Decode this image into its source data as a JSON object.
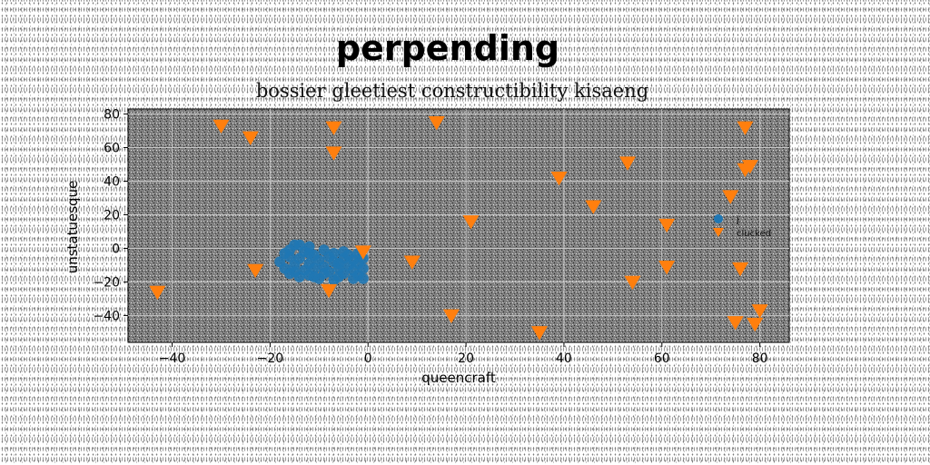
{
  "chart_data": {
    "type": "scatter",
    "title": "perpending",
    "subtitle": "bossier gleetiest constructibility kisaeng",
    "xlabel": "queencraft",
    "ylabel": "unstatuesque",
    "xlim": [
      -49,
      86
    ],
    "ylim": [
      -56,
      83
    ],
    "xticks": [
      -40,
      -20,
      0,
      20,
      40,
      60,
      80
    ],
    "yticks": [
      -40,
      -20,
      0,
      20,
      40,
      60,
      80
    ],
    "grid": true,
    "legend_position": "right",
    "series": [
      {
        "name": "j",
        "marker": "circle",
        "color": "#1f77b4",
        "points": [
          [
            -18,
            -8
          ],
          [
            -17,
            -12
          ],
          [
            -16,
            -5
          ],
          [
            -16,
            -15
          ],
          [
            -15,
            2
          ],
          [
            -15,
            -10
          ],
          [
            -14,
            -6
          ],
          [
            -14,
            -17
          ],
          [
            -13,
            -2
          ],
          [
            -13,
            -13
          ],
          [
            -12,
            1
          ],
          [
            -12,
            -9
          ],
          [
            -12,
            -16
          ],
          [
            -11,
            -4
          ],
          [
            -11,
            -12
          ],
          [
            -10,
            -7
          ],
          [
            -10,
            -18
          ],
          [
            -9,
            -1
          ],
          [
            -9,
            -11
          ],
          [
            -9,
            -15
          ],
          [
            -8,
            -5
          ],
          [
            -8,
            -14
          ],
          [
            -7,
            -8
          ],
          [
            -7,
            -3
          ],
          [
            -6,
            -12
          ],
          [
            -6,
            -17
          ],
          [
            -5,
            -6
          ],
          [
            -5,
            -2
          ],
          [
            -5,
            -15
          ],
          [
            -4,
            -10
          ],
          [
            -4,
            -4
          ],
          [
            -3,
            -13
          ],
          [
            -3,
            -7
          ],
          [
            -2,
            -16
          ],
          [
            -2,
            -9
          ],
          [
            -2,
            -3
          ],
          [
            -1,
            -12
          ],
          [
            -1,
            -18
          ],
          [
            -1,
            -6
          ],
          [
            -16,
            -1
          ],
          [
            -14,
            2
          ],
          [
            -12,
            -3
          ],
          [
            -17,
            -3
          ],
          [
            -11,
            -17
          ],
          [
            -3,
            -18
          ],
          [
            -7,
            -19
          ],
          [
            -15,
            -14
          ],
          [
            -6,
            -9
          ]
        ]
      },
      {
        "name": "clucked",
        "marker": "triangle_down",
        "color": "#ff7f0e",
        "points": [
          [
            -43,
            -26
          ],
          [
            -30,
            73
          ],
          [
            -24,
            66
          ],
          [
            -23,
            -13
          ],
          [
            -7,
            72
          ],
          [
            -7,
            57
          ],
          [
            -8,
            -25
          ],
          [
            -1,
            -2
          ],
          [
            9,
            -8
          ],
          [
            14,
            75
          ],
          [
            17,
            -40
          ],
          [
            21,
            16
          ],
          [
            35,
            -50
          ],
          [
            39,
            42
          ],
          [
            46,
            25
          ],
          [
            53,
            51
          ],
          [
            54,
            -20
          ],
          [
            61,
            14
          ],
          [
            61,
            -11
          ],
          [
            74,
            31
          ],
          [
            76,
            -12
          ],
          [
            75,
            -44
          ],
          [
            77,
            72
          ],
          [
            77,
            47
          ],
          [
            78,
            49
          ],
          [
            79,
            -45
          ],
          [
            80,
            -37
          ]
        ]
      }
    ]
  }
}
